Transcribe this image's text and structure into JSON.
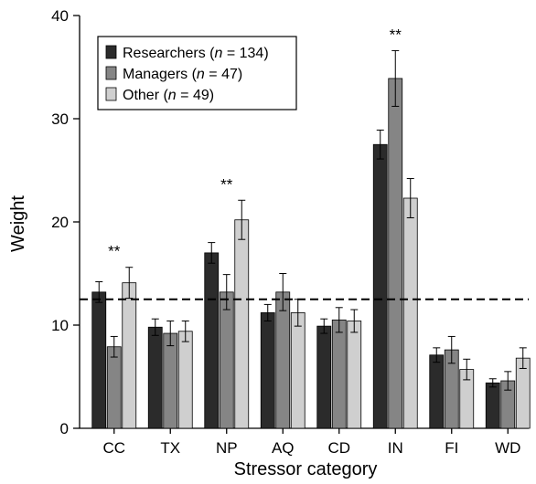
{
  "chart_data": {
    "type": "bar",
    "xlabel": "Stressor category",
    "ylabel": "Weight",
    "ylim": [
      0,
      40
    ],
    "yticks": [
      0,
      10,
      20,
      30,
      40
    ],
    "grid": false,
    "legend_position": "top-left",
    "categories": [
      "CC",
      "TX",
      "NP",
      "AQ",
      "CD",
      "IN",
      "FI",
      "WD"
    ],
    "series": [
      {
        "name": "Researchers",
        "n_label": "n",
        "n_value": "134",
        "color": "#2b2b2b",
        "values": [
          13.2,
          9.8,
          17.0,
          11.2,
          9.9,
          27.5,
          7.1,
          4.4
        ],
        "errors": [
          1.0,
          0.8,
          1.0,
          0.8,
          0.7,
          1.4,
          0.7,
          0.4
        ]
      },
      {
        "name": "Managers",
        "n_label": "n",
        "n_value": "47",
        "color": "#858585",
        "values": [
          7.9,
          9.2,
          13.2,
          13.2,
          10.5,
          33.9,
          7.6,
          4.6
        ],
        "errors": [
          1.0,
          1.2,
          1.7,
          1.8,
          1.2,
          2.7,
          1.3,
          0.9
        ]
      },
      {
        "name": "Other",
        "n_label": "n",
        "n_value": "49",
        "color": "#cfcfcf",
        "values": [
          14.1,
          9.4,
          20.2,
          11.2,
          10.4,
          22.3,
          5.7,
          6.8
        ],
        "errors": [
          1.5,
          1.0,
          1.9,
          1.3,
          1.1,
          1.9,
          1.0,
          1.0
        ]
      }
    ],
    "reference_line": {
      "y": 12.5,
      "style": "dashed"
    },
    "annotations": [
      {
        "category": "CC",
        "text": "**"
      },
      {
        "category": "NP",
        "text": "**"
      },
      {
        "category": "IN",
        "text": "**"
      }
    ]
  }
}
